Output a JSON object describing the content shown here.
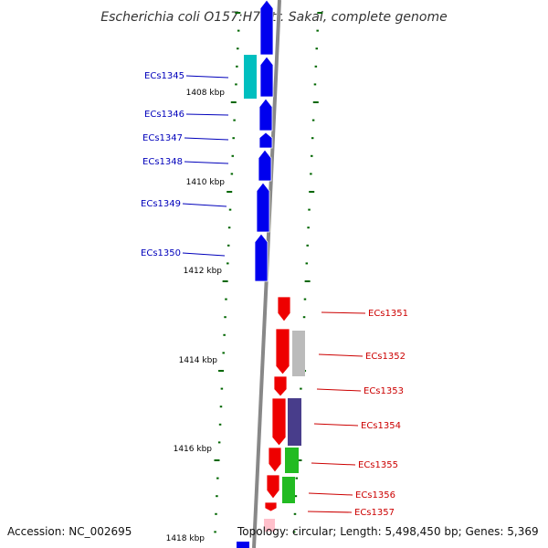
{
  "title": "Escherichia coli O157:H7 str. Sakai, complete genome",
  "footer": {
    "accession": "Accession: NC_002695",
    "topology": "Topology: circular; Length: 5,498,450 bp; Genes: 5,369"
  },
  "colors": {
    "forward_gene": "#0000ee",
    "reverse_gene": "#ee0000",
    "forward_label": "#0000bb",
    "reverse_label": "#cc0000",
    "tick": "#006600",
    "backbone": "#888888",
    "cyan_feature": "#00bfbf",
    "gray_feature": "#bbbbbb",
    "purple_feature": "#483d8b",
    "green_feature": "#22bb22"
  },
  "ruler_labels": [
    "1408 kbp",
    "1410 kbp",
    "1412 kbp",
    "1414 kbp",
    "1416 kbp",
    "1418 kbp"
  ],
  "forward_genes": [
    "ECs1345",
    "ECs1346",
    "ECs1347",
    "ECs1348",
    "ECs1349",
    "ECs1350"
  ],
  "reverse_genes": [
    "ECs1351",
    "ECs1352",
    "ECs1353",
    "ECs1354",
    "ECs1355",
    "ECs1356",
    "ECs1357"
  ]
}
